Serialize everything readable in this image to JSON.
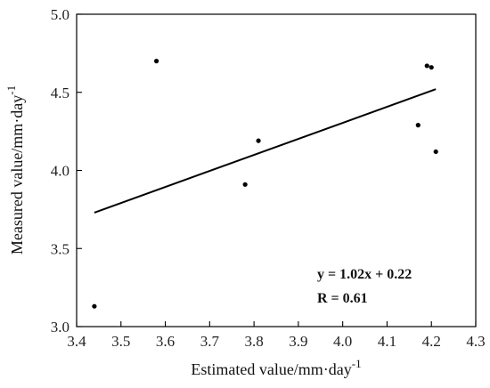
{
  "chart_data": {
    "type": "scatter",
    "xlabel": "Estimated value/mm·day",
    "xlabel_sup": "-1",
    "ylabel": "Measured value/mm·day",
    "ylabel_sup": "-1",
    "xlim": [
      3.4,
      4.3
    ],
    "ylim": [
      3.0,
      5.0
    ],
    "xticks": [
      3.4,
      3.5,
      3.6,
      3.7,
      3.8,
      3.9,
      4.0,
      4.1,
      4.2,
      4.3
    ],
    "xtick_labels": [
      "3.4",
      "3.5",
      "3.6",
      "3.7",
      "3.8",
      "3.9",
      "4.0",
      "4.1",
      "4.2",
      "4.3"
    ],
    "yticks": [
      3.0,
      3.5,
      4.0,
      4.5,
      5.0
    ],
    "ytick_labels": [
      "3.0",
      "3.5",
      "4.0",
      "4.5",
      "5.0"
    ],
    "points": [
      {
        "x": 3.44,
        "y": 3.13
      },
      {
        "x": 3.58,
        "y": 4.7
      },
      {
        "x": 3.78,
        "y": 3.91
      },
      {
        "x": 3.81,
        "y": 4.19
      },
      {
        "x": 4.17,
        "y": 4.29
      },
      {
        "x": 4.19,
        "y": 4.67
      },
      {
        "x": 4.2,
        "y": 4.66
      },
      {
        "x": 4.21,
        "y": 4.12
      }
    ],
    "fit_line": {
      "x": [
        3.44,
        4.21
      ],
      "y": [
        3.73,
        4.52
      ]
    },
    "annotations": [
      "y = 1.02x + 0.22",
      "R = 0.61"
    ],
    "grid": false
  }
}
